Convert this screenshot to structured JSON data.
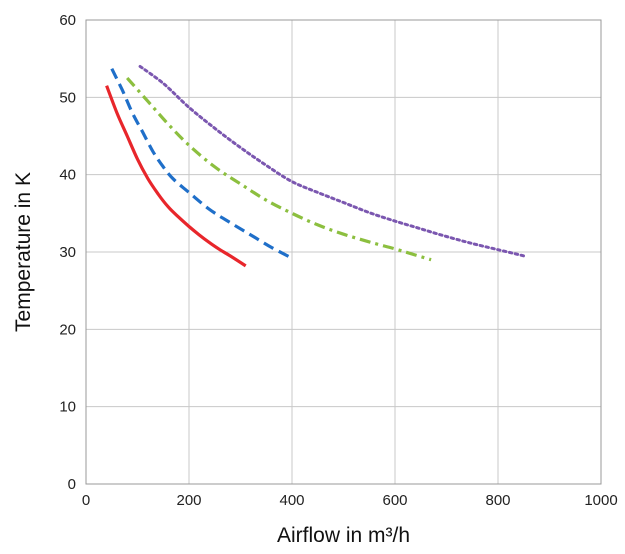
{
  "chart_data": {
    "type": "line",
    "title": "",
    "xlabel": "Airflow in m³/h",
    "ylabel": "Temperature in K",
    "xlim": [
      0,
      1000
    ],
    "ylim": [
      0,
      60
    ],
    "xticks": [
      0,
      200,
      400,
      600,
      800,
      1000
    ],
    "yticks": [
      0,
      10,
      20,
      30,
      40,
      50,
      60
    ],
    "grid": true,
    "legend": "none",
    "series": [
      {
        "color": "#e8262b",
        "style": "solid",
        "x": [
          40,
          60,
          80,
          100,
          120,
          140,
          160,
          180,
          200,
          220,
          240,
          260,
          280,
          310
        ],
        "y": [
          51.5,
          48,
          45,
          42,
          39.5,
          37.5,
          35.8,
          34.5,
          33.3,
          32.2,
          31.2,
          30.3,
          29.5,
          28.2
        ]
      },
      {
        "color": "#1f6fc9",
        "style": "dashed",
        "x": [
          50,
          70,
          90,
          110,
          130,
          150,
          170,
          200,
          240,
          280,
          320,
          360,
          400
        ],
        "y": [
          53.7,
          51,
          48,
          45.5,
          43,
          41,
          39.4,
          37.7,
          35.5,
          33.8,
          32.2,
          30.6,
          29.2
        ]
      },
      {
        "color": "#8cbf3f",
        "style": "dashdot",
        "x": [
          80,
          120,
          160,
          200,
          250,
          300,
          350,
          400,
          450,
          500,
          550,
          600,
          640,
          670
        ],
        "y": [
          52.5,
          49.5,
          46.5,
          43.8,
          41,
          38.8,
          36.7,
          35,
          33.5,
          32.3,
          31.3,
          30.4,
          29.6,
          29
        ]
      },
      {
        "color": "#7b57b0",
        "style": "dotted",
        "x": [
          105,
          150,
          200,
          250,
          300,
          350,
          400,
          450,
          500,
          550,
          600,
          650,
          700,
          750,
          800,
          850
        ],
        "y": [
          54,
          51.8,
          48.7,
          46,
          43.5,
          41.2,
          39.1,
          37.7,
          36.4,
          35.1,
          34,
          33,
          32,
          31.1,
          30.3,
          29.5
        ]
      }
    ]
  }
}
